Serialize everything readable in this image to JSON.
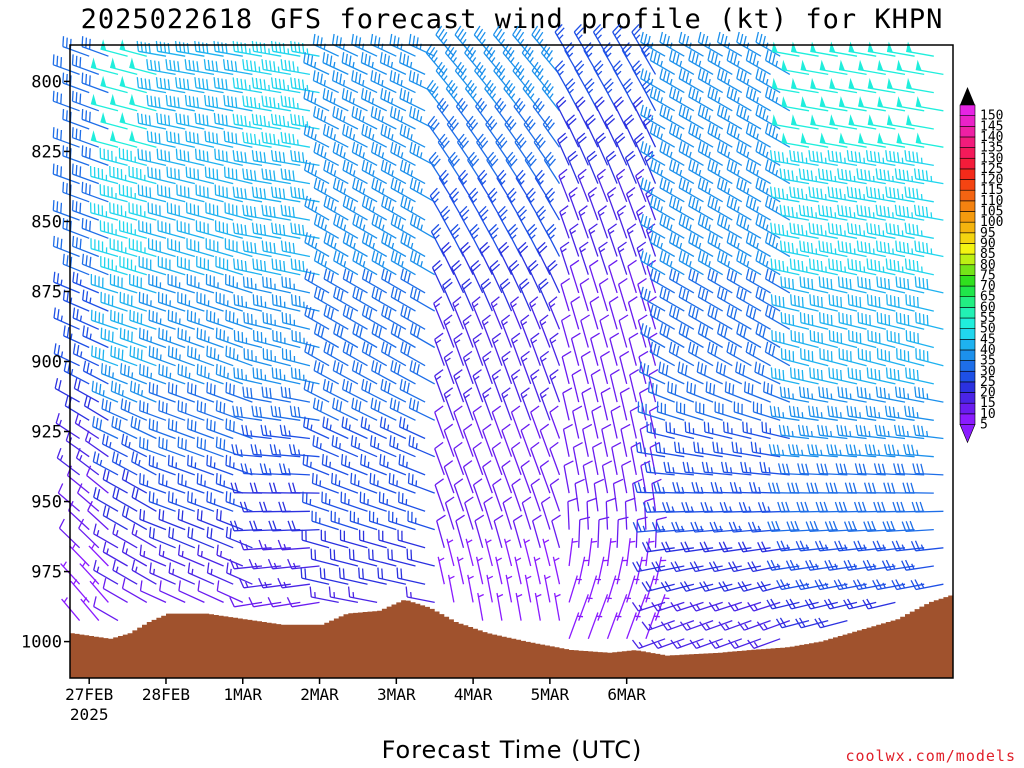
{
  "chart_data": {
    "type": "wind-barb-profile",
    "title": "2025022618 GFS forecast wind profile (kt) for KHPN",
    "xlabel": "Forecast Time (UTC)",
    "credit": "coolwx.com/models",
    "y_axis": {
      "ticks": [
        "800",
        "825",
        "850",
        "875",
        "900",
        "925",
        "950",
        "975",
        "1000"
      ],
      "range": [
        787,
        1013
      ],
      "inverted": true
    },
    "x_axis": {
      "ticks": [
        "27FEB",
        "28FEB",
        "1MAR",
        "2MAR",
        "3MAR",
        "4MAR",
        "5MAR",
        "6MAR"
      ],
      "sub_tick": "2025",
      "range_hours": [
        -6,
        270
      ]
    },
    "colorbar": {
      "levels": [
        "5",
        "10",
        "15",
        "20",
        "25",
        "30",
        "35",
        "40",
        "45",
        "50",
        "55",
        "60",
        "65",
        "70",
        "75",
        "80",
        "85",
        "90",
        "95",
        "100",
        "105",
        "110",
        "115",
        "120",
        "125",
        "130",
        "135",
        "140",
        "145",
        "150"
      ],
      "colors": [
        "#8a1bff",
        "#6a1cf0",
        "#4a24e6",
        "#2b31e0",
        "#1e50e6",
        "#1e6ee8",
        "#1c90ec",
        "#1eb2f0",
        "#21d6ee",
        "#20eedc",
        "#22f0b4",
        "#22ee82",
        "#20e64a",
        "#30e01e",
        "#74e418",
        "#bdf014",
        "#f4f412",
        "#f4d410",
        "#f4b40e",
        "#f49a0e",
        "#f48210",
        "#f46412",
        "#f44412",
        "#f42a1a",
        "#f41c3a",
        "#f41a5a",
        "#f21c7c",
        "#ee20a4",
        "#ea22c8",
        "#e624e4"
      ]
    },
    "terrain_color": "#a0522d",
    "surface_pressure": [
      {
        "hour": -6,
        "p": 997
      },
      {
        "hour": 6,
        "p": 999
      },
      {
        "hour": 12,
        "p": 997
      },
      {
        "hour": 18,
        "p": 993
      },
      {
        "hour": 24,
        "p": 990
      },
      {
        "hour": 36,
        "p": 990
      },
      {
        "hour": 48,
        "p": 992
      },
      {
        "hour": 60,
        "p": 994
      },
      {
        "hour": 72,
        "p": 994
      },
      {
        "hour": 80,
        "p": 990
      },
      {
        "hour": 90,
        "p": 989
      },
      {
        "hour": 98,
        "p": 985
      },
      {
        "hour": 106,
        "p": 988
      },
      {
        "hour": 114,
        "p": 993
      },
      {
        "hour": 124,
        "p": 997
      },
      {
        "hour": 136,
        "p": 1000
      },
      {
        "hour": 150,
        "p": 1003
      },
      {
        "hour": 162,
        "p": 1004
      },
      {
        "hour": 170,
        "p": 1003
      },
      {
        "hour": 180,
        "p": 1005
      },
      {
        "hour": 196,
        "p": 1004
      },
      {
        "hour": 206,
        "p": 1003
      },
      {
        "hour": 218,
        "p": 1002
      },
      {
        "hour": 228,
        "p": 1000
      },
      {
        "hour": 240,
        "p": 996
      },
      {
        "hour": 252,
        "p": 992
      },
      {
        "hour": 262,
        "p": 986
      },
      {
        "hour": 270,
        "p": 983
      }
    ],
    "wind_regimes": [
      {
        "hours": [
          -6,
          8
        ],
        "levels": {
          "800": {
            "dir": 290,
            "spd": 30
          },
          "850": {
            "dir": 290,
            "spd": 30
          },
          "900": {
            "dir": 295,
            "spd": 25
          },
          "950": {
            "dir": 310,
            "spd": 10
          },
          "990": {
            "dir": 320,
            "spd": 5
          }
        }
      },
      {
        "hours": [
          8,
          24
        ],
        "levels": {
          "800": {
            "dir": 285,
            "spd": 50
          },
          "850": {
            "dir": 285,
            "spd": 45
          },
          "900": {
            "dir": 290,
            "spd": 40
          },
          "950": {
            "dir": 300,
            "spd": 20
          },
          "990": {
            "dir": 300,
            "spd": 10
          }
        }
      },
      {
        "hours": [
          24,
          54
        ],
        "levels": {
          "800": {
            "dir": 280,
            "spd": 40
          },
          "850": {
            "dir": 285,
            "spd": 40
          },
          "900": {
            "dir": 290,
            "spd": 35
          },
          "950": {
            "dir": 290,
            "spd": 25
          },
          "990": {
            "dir": 295,
            "spd": 10
          }
        }
      },
      {
        "hours": [
          54,
          75
        ],
        "levels": {
          "800": {
            "dir": 280,
            "spd": 45
          },
          "850": {
            "dir": 280,
            "spd": 40
          },
          "900": {
            "dir": 285,
            "spd": 35
          },
          "950": {
            "dir": 270,
            "spd": 20
          },
          "990": {
            "dir": 260,
            "spd": 10
          }
        }
      },
      {
        "hours": [
          75,
          110
        ],
        "levels": {
          "800": {
            "dir": 295,
            "spd": 35
          },
          "850": {
            "dir": 300,
            "spd": 35
          },
          "900": {
            "dir": 300,
            "spd": 30
          },
          "950": {
            "dir": 290,
            "spd": 25
          },
          "990": {
            "dir": 280,
            "spd": 15
          }
        }
      },
      {
        "hours": [
          110,
          150
        ],
        "levels": {
          "800": {
            "dir": 320,
            "spd": 35
          },
          "850": {
            "dir": 330,
            "spd": 25
          },
          "900": {
            "dir": 340,
            "spd": 15
          },
          "950": {
            "dir": 340,
            "spd": 10
          },
          "990": {
            "dir": 350,
            "spd": 5
          }
        }
      },
      {
        "hours": [
          150,
          180
        ],
        "levels": {
          "800": {
            "dir": 330,
            "spd": 25
          },
          "850": {
            "dir": 340,
            "spd": 15
          },
          "900": {
            "dir": 345,
            "spd": 10
          },
          "950": {
            "dir": 350,
            "spd": 10
          },
          "990": {
            "dir": 20,
            "spd": 5
          }
        }
      },
      {
        "hours": [
          180,
          220
        ],
        "levels": {
          "800": {
            "dir": 300,
            "spd": 35
          },
          "850": {
            "dir": 300,
            "spd": 35
          },
          "900": {
            "dir": 300,
            "spd": 30
          },
          "950": {
            "dir": 270,
            "spd": 25
          },
          "990": {
            "dir": 250,
            "spd": 15
          }
        }
      },
      {
        "hours": [
          220,
          270
        ],
        "levels": {
          "800": {
            "dir": 280,
            "spd": 50
          },
          "850": {
            "dir": 280,
            "spd": 45
          },
          "900": {
            "dir": 285,
            "spd": 40
          },
          "950": {
            "dir": 270,
            "spd": 30
          },
          "990": {
            "dir": 255,
            "spd": 20
          }
        }
      }
    ]
  }
}
